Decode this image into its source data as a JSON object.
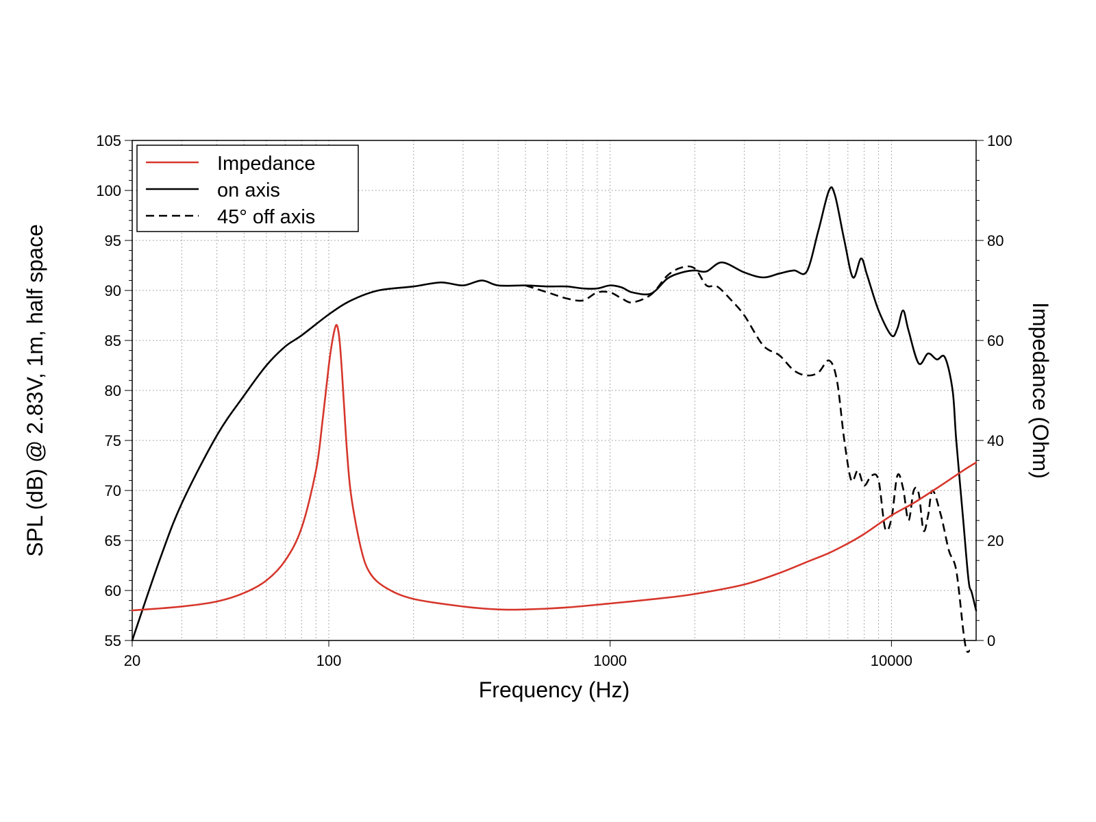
{
  "chart_data": {
    "type": "line",
    "title": "",
    "xlabel": "Frequency (Hz)",
    "ylabel": "SPL (dB) @ 2.83V, 1m, half space",
    "y2label": "Impedance (Ohm)",
    "x_scale": "log",
    "xlim": [
      20,
      20000
    ],
    "ylim": [
      55,
      105
    ],
    "y2lim": [
      0,
      100
    ],
    "x_tick_labels": [
      "20",
      "100",
      "1000",
      "10000"
    ],
    "x_tick_values": [
      20,
      100,
      1000,
      10000
    ],
    "y_ticks": [
      55,
      60,
      65,
      70,
      75,
      80,
      85,
      90,
      95,
      100,
      105
    ],
    "y2_ticks": [
      0,
      20,
      40,
      60,
      80,
      100
    ],
    "grid": true,
    "legend_position": "top-left",
    "series": [
      {
        "name": "Impedance",
        "axis": "right",
        "color": "#d6362b",
        "dash": "solid",
        "x": [
          20,
          30,
          40,
          50,
          60,
          70,
          80,
          90,
          95,
          100,
          103,
          106,
          108,
          110,
          113,
          116,
          120,
          130,
          140,
          160,
          200,
          300,
          400,
          500,
          700,
          1000,
          1500,
          2000,
          3000,
          4000,
          5000,
          6000,
          7000,
          8000,
          10000,
          12000,
          15000,
          18000,
          20000
        ],
        "y": [
          6,
          6.8,
          7.8,
          9.5,
          12,
          16,
          22.5,
          34,
          44,
          55,
          60,
          63,
          62,
          58,
          48,
          38,
          29,
          18.5,
          13.5,
          10.5,
          8.3,
          6.8,
          6.2,
          6.2,
          6.6,
          7.4,
          8.4,
          9.3,
          11.2,
          13.5,
          15.7,
          17.5,
          19.4,
          21.3,
          25,
          27.5,
          31,
          34,
          35.6
        ]
      },
      {
        "name": "on axis",
        "axis": "left",
        "color": "#000000",
        "dash": "solid",
        "x": [
          20,
          25,
          30,
          40,
          50,
          60,
          70,
          80,
          100,
          120,
          150,
          200,
          250,
          300,
          350,
          400,
          500,
          600,
          700,
          800,
          900,
          1000,
          1100,
          1200,
          1400,
          1600,
          1800,
          2000,
          2200,
          2500,
          3000,
          3500,
          4000,
          4500,
          5000,
          5500,
          6000,
          6300,
          6800,
          7300,
          7800,
          8200,
          9000,
          10000,
          10500,
          11000,
          11500,
          12500,
          13500,
          14500,
          15500,
          16500,
          17000,
          18000,
          18800,
          19300,
          20000
        ],
        "y": [
          55,
          63,
          68.7,
          75.5,
          79.5,
          82.5,
          84.4,
          85.5,
          87.6,
          89,
          90,
          90.4,
          90.8,
          90.5,
          91,
          90.5,
          90.5,
          90.4,
          90.4,
          90.2,
          90.2,
          90.5,
          90.3,
          89.8,
          89.7,
          91.2,
          91.8,
          92,
          91.9,
          92.8,
          91.8,
          91.3,
          91.7,
          92,
          91.9,
          96,
          100,
          99.5,
          95,
          91.3,
          93.2,
          91.5,
          88,
          85.5,
          86.2,
          88,
          86,
          82.7,
          83.7,
          83.1,
          83.3,
          80,
          75,
          67,
          61,
          59.8,
          58
        ]
      },
      {
        "name": "45° off axis",
        "axis": "left",
        "color": "#000000",
        "dash": "dashed",
        "x": [
          500,
          600,
          700,
          800,
          900,
          1000,
          1100,
          1200,
          1400,
          1600,
          1800,
          2000,
          2200,
          2400,
          2700,
          3000,
          3500,
          4000,
          4500,
          5000,
          5500,
          6000,
          6400,
          6800,
          7200,
          7600,
          8000,
          8500,
          9000,
          9500,
          10000,
          10500,
          11000,
          11500,
          12000,
          12500,
          13000,
          13500,
          14000,
          15000,
          16000,
          17000,
          18000,
          18500,
          19000
        ],
        "y": [
          90.5,
          89.8,
          89.2,
          89,
          89.8,
          89.8,
          89.2,
          88.8,
          89.6,
          91.5,
          92.3,
          92.2,
          90.5,
          90.4,
          89,
          87.5,
          84.5,
          83.5,
          82,
          81.5,
          81.8,
          83,
          81,
          75,
          71,
          72,
          70.5,
          71.5,
          71,
          66.2,
          67.2,
          71.5,
          70.2,
          67,
          70,
          69.7,
          66,
          67.5,
          70,
          67.5,
          64,
          62,
          56,
          54,
          54
        ]
      }
    ]
  }
}
